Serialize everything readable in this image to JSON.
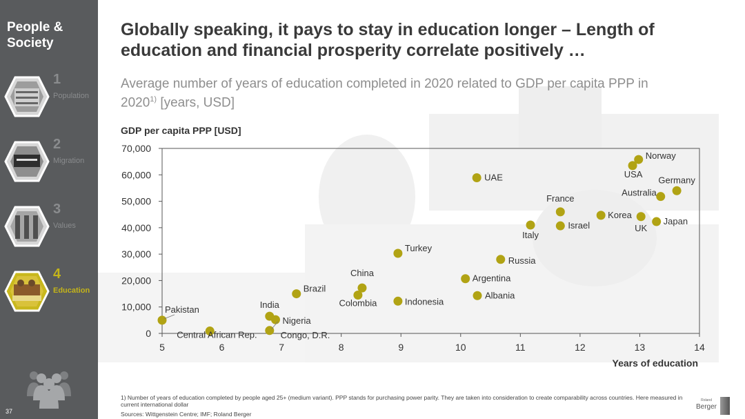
{
  "sidebar": {
    "title": "People &\nSociety",
    "items": [
      {
        "num": "1",
        "label": "Population",
        "icon": "crowd-photo-icon"
      },
      {
        "num": "2",
        "label": "Migration",
        "icon": "immigration-sign-photo-icon"
      },
      {
        "num": "3",
        "label": "Values",
        "icon": "building-photo-icon"
      },
      {
        "num": "4",
        "label": "Education",
        "icon": "classroom-photo-icon",
        "active": true
      }
    ],
    "page_number": "37",
    "footer_icon": "people-group-icon"
  },
  "headline": "Globally speaking, it pays to stay in education longer – Length of education and financial prosperity correlate positively …",
  "subtitle": {
    "text": "Average number of years of education completed in 2020 related to GDP per capita PPP in 2020",
    "sup": "1)",
    "suffix": " [years, USD]"
  },
  "footnote": "1) Number of years of education completed by people aged 25+ (medium variant). PPP stands for purchasing power parity. They are taken into consideration to create comparability across countries. Here measured in current international dollar",
  "sources": "Sources: Wittgenstein Centre; IMF; Roland Berger",
  "logo": {
    "small": "Roland",
    "main": "Berger"
  },
  "colors": {
    "sidebar": "#595b5d",
    "accent": "#b4a51a",
    "dot": "#b1a314",
    "text": "#3a3a3a"
  },
  "chart_data": {
    "type": "scatter",
    "ylabel": "GDP per capita PPP [USD]",
    "xlabel": "Years of education",
    "xlim": [
      5,
      14
    ],
    "ylim": [
      0,
      70000
    ],
    "xticks": [
      "5",
      "6",
      "7",
      "8",
      "9",
      "10",
      "11",
      "12",
      "13",
      "14"
    ],
    "yticks": [
      "0",
      "10,000",
      "20,000",
      "30,000",
      "40,000",
      "50,000",
      "60,000",
      "70,000"
    ],
    "grid": false,
    "points": [
      {
        "label": "Pakistan",
        "x": 5.0,
        "y": 5000
      },
      {
        "label": "Central African Rep.",
        "x": 5.8,
        "y": 900
      },
      {
        "label": "India",
        "x": 6.8,
        "y": 6500
      },
      {
        "label": "Nigeria",
        "x": 6.9,
        "y": 5200
      },
      {
        "label": "Congo, D.R.",
        "x": 6.8,
        "y": 1100
      },
      {
        "label": "Brazil",
        "x": 7.25,
        "y": 15000
      },
      {
        "label": "China",
        "x": 8.35,
        "y": 17200
      },
      {
        "label": "Colombia",
        "x": 8.28,
        "y": 14500
      },
      {
        "label": "Turkey",
        "x": 8.95,
        "y": 30300
      },
      {
        "label": "Indonesia",
        "x": 8.95,
        "y": 12200
      },
      {
        "label": "UAE",
        "x": 10.27,
        "y": 58900
      },
      {
        "label": "Argentina",
        "x": 10.08,
        "y": 20700
      },
      {
        "label": "Albania",
        "x": 10.28,
        "y": 14300
      },
      {
        "label": "Russia",
        "x": 10.67,
        "y": 28000
      },
      {
        "label": "Italy",
        "x": 11.17,
        "y": 41000
      },
      {
        "label": "France",
        "x": 11.67,
        "y": 46000
      },
      {
        "label": "Israel",
        "x": 11.67,
        "y": 40700
      },
      {
        "label": "Korea",
        "x": 12.35,
        "y": 44700
      },
      {
        "label": "USA",
        "x": 12.88,
        "y": 63500
      },
      {
        "label": "Norway",
        "x": 12.98,
        "y": 65800
      },
      {
        "label": "UK",
        "x": 13.02,
        "y": 44200
      },
      {
        "label": "Australia",
        "x": 13.35,
        "y": 51800
      },
      {
        "label": "Japan",
        "x": 13.28,
        "y": 42300
      },
      {
        "label": "Germany",
        "x": 13.62,
        "y": 54000
      }
    ]
  }
}
